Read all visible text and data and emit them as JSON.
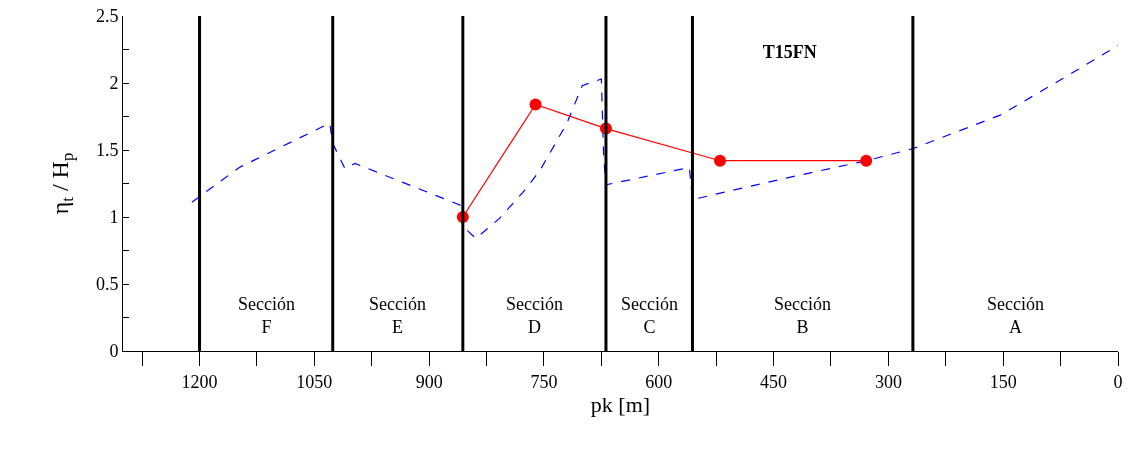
{
  "chart_data": {
    "type": "line",
    "title": "T15FN",
    "xlabel": "pk [m]",
    "ylabel": "η$_{t}$ / H$_{p}$",
    "xlim": [
      1300,
      0
    ],
    "xticks": [
      {
        "value": 1275,
        "label": null
      },
      1200,
      {
        "value": 1125,
        "label": null
      },
      1050,
      {
        "value": 975,
        "label": null
      },
      900,
      {
        "value": 825,
        "label": null
      },
      750,
      {
        "value": 675,
        "label": null
      },
      600,
      {
        "value": 525,
        "label": null
      },
      450,
      {
        "value": 375,
        "label": null
      },
      300,
      {
        "value": 225,
        "label": null
      },
      150,
      {
        "value": 75,
        "label": null
      },
      0
    ],
    "ylim": [
      0,
      2.5
    ],
    "yticks": [
      0,
      {
        "value": 0.25,
        "label": null
      },
      0.5,
      {
        "value": 0.75,
        "label": null
      },
      1,
      {
        "value": 1.25,
        "label": null
      },
      1.5,
      {
        "value": 1.75,
        "label": null
      },
      2,
      {
        "value": 2.25,
        "label": null
      },
      2.5
    ],
    "series": [
      {
        "color": "#0000ff",
        "line_style": "dashed",
        "marker": "none",
        "x": [
          1210,
          1148,
          1030,
          1026,
          1010,
          997,
          860,
          856,
          839,
          808,
          775,
          755,
          720,
          700,
          675,
          672,
          669,
          560,
          556,
          442,
          329,
          268,
          154,
          76,
          0
        ],
        "values": [
          1.11,
          1.37,
          1.7,
          1.55,
          1.36,
          1.4,
          1.09,
          0.93,
          0.84,
          0.99,
          1.2,
          1.35,
          1.7,
          1.98,
          2.03,
          1.45,
          1.24,
          1.37,
          1.13,
          1.28,
          1.42,
          1.51,
          1.76,
          2.02,
          2.28
        ]
      },
      {
        "color": "#ff0000",
        "line_style": "solid",
        "marker": "circle",
        "x": [
          856,
          761,
          669,
          520,
          329
        ],
        "values": [
          1.0,
          1.84,
          1.66,
          1.42,
          1.42
        ]
      }
    ],
    "ref_lines": [
      {
        "axis": "x",
        "value": 1200,
        "color": "#000000"
      },
      {
        "axis": "x",
        "value": 1026,
        "color": "#000000"
      },
      {
        "axis": "x",
        "value": 856,
        "color": "#000000"
      },
      {
        "axis": "x",
        "value": 669,
        "color": "#000000"
      },
      {
        "axis": "x",
        "value": 556,
        "color": "#000000"
      },
      {
        "axis": "x",
        "value": 268,
        "color": "#000000"
      }
    ],
    "annotations": [
      "Sección\nF",
      "Sección\nE",
      "Sección\nD",
      "Sección\nC",
      "Sección\nB",
      "Sección\nA"
    ]
  }
}
